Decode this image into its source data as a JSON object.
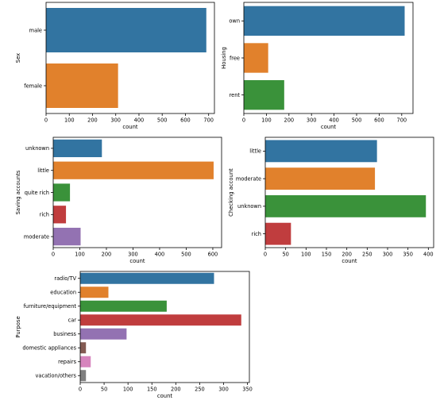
{
  "chart_data": [
    {
      "type": "bar",
      "orientation": "horizontal",
      "xlabel": "count",
      "ylabel": "Sex",
      "categories": [
        "male",
        "female"
      ],
      "values": [
        690,
        310
      ],
      "colors": [
        "#3274a1",
        "#e1812c"
      ],
      "xlim": [
        0,
        725
      ],
      "xticks": [
        0,
        100,
        200,
        300,
        400,
        500,
        600,
        700
      ]
    },
    {
      "type": "bar",
      "orientation": "horizontal",
      "xlabel": "count",
      "ylabel": "Housing",
      "categories": [
        "own",
        "free",
        "rent"
      ],
      "values": [
        713,
        108,
        179
      ],
      "colors": [
        "#3274a1",
        "#e1812c",
        "#3a923a"
      ],
      "xlim": [
        0,
        750
      ],
      "xticks": [
        0,
        100,
        200,
        300,
        400,
        500,
        600,
        700
      ]
    },
    {
      "type": "bar",
      "orientation": "horizontal",
      "xlabel": "count",
      "ylabel": "Saving accounts",
      "categories": [
        "unknown",
        "little",
        "quite rich",
        "rich",
        "moderate"
      ],
      "values": [
        183,
        603,
        63,
        48,
        103
      ],
      "colors": [
        "#3274a1",
        "#e1812c",
        "#3a923a",
        "#c03d3e",
        "#9372b2"
      ],
      "xlim": [
        0,
        633
      ],
      "xticks": [
        0,
        100,
        200,
        300,
        400,
        500,
        600
      ]
    },
    {
      "type": "bar",
      "orientation": "horizontal",
      "xlabel": "count",
      "ylabel": "Checking account",
      "categories": [
        "little",
        "moderate",
        "unknown",
        "rich"
      ],
      "values": [
        274,
        269,
        394,
        63
      ],
      "colors": [
        "#3274a1",
        "#e1812c",
        "#3a923a",
        "#c03d3e"
      ],
      "xlim": [
        0,
        413
      ],
      "xticks": [
        0,
        50,
        100,
        150,
        200,
        250,
        300,
        350,
        400
      ]
    },
    {
      "type": "bar",
      "orientation": "horizontal",
      "xlabel": "count",
      "ylabel": "Purpose",
      "categories": [
        "radio/TV",
        "education",
        "furniture/equipment",
        "car",
        "business",
        "domestic appliances",
        "repairs",
        "vacation/others"
      ],
      "values": [
        280,
        59,
        181,
        337,
        97,
        12,
        22,
        12
      ],
      "colors": [
        "#3274a1",
        "#e1812c",
        "#3a923a",
        "#c03d3e",
        "#9372b2",
        "#845b53",
        "#d684bd",
        "#7f7f7f"
      ],
      "xlim": [
        0,
        354
      ],
      "xticks": [
        0,
        50,
        100,
        150,
        200,
        250,
        300,
        350
      ]
    }
  ]
}
